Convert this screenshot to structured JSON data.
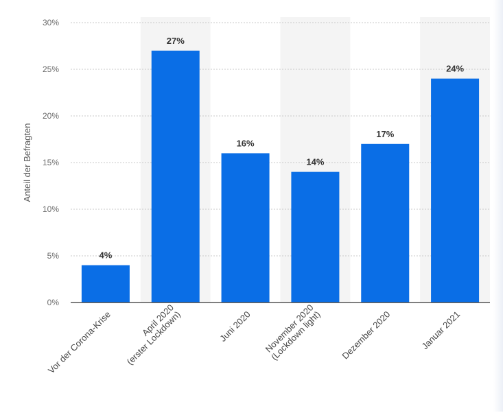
{
  "chart_data": {
    "type": "bar",
    "ylabel": "Anteil der Befragten",
    "ylim": [
      0,
      30
    ],
    "ytick_step": 5,
    "y_tick_suffix": "%",
    "grid": true,
    "categories": [
      [
        "Vor der Corona-Krise"
      ],
      [
        "April 2020",
        "(erster Lockdown)"
      ],
      [
        "Juni 2020"
      ],
      [
        "November 2020",
        "(Lockdown light)"
      ],
      [
        "Dezember 2020"
      ],
      [
        "Januar 2021"
      ]
    ],
    "values": [
      4,
      27,
      16,
      14,
      17,
      24
    ],
    "data_labels": [
      "4%",
      "27%",
      "16%",
      "14%",
      "17%",
      "24%"
    ],
    "bar_color": "#0a6ee6",
    "band_color": "#f4f4f4"
  }
}
